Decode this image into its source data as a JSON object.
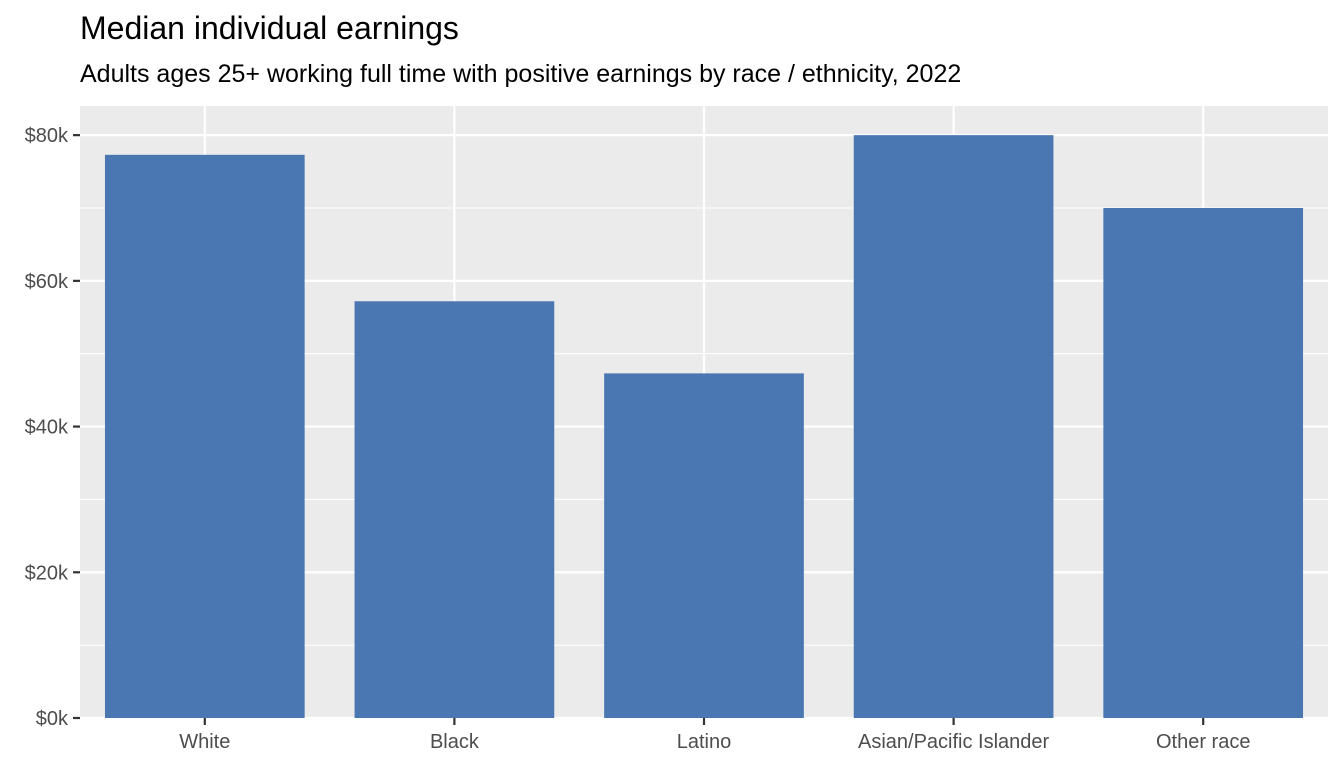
{
  "chart_data": {
    "type": "bar",
    "title": "Median individual earnings",
    "subtitle": "Adults ages 25+ working full time with positive earnings by race / ethnicity, 2022",
    "xlabel": "",
    "ylabel": "",
    "categories": [
      "White",
      "Black",
      "Latino",
      "Asian/Pacific Islander",
      "Other race"
    ],
    "values": [
      77300,
      57200,
      47300,
      80000,
      70000
    ],
    "ylim": [
      0,
      84000
    ],
    "yticks": [
      0,
      20000,
      40000,
      60000,
      80000
    ],
    "ytick_labels": [
      "$0k",
      "$20k",
      "$40k",
      "$60k",
      "$80k"
    ],
    "grid": true,
    "legend": "none",
    "colors": {
      "bar": "#4a77b2",
      "panel": "#ebebeb",
      "grid": "#ffffff",
      "tick_text": "#4d4d4d"
    }
  }
}
